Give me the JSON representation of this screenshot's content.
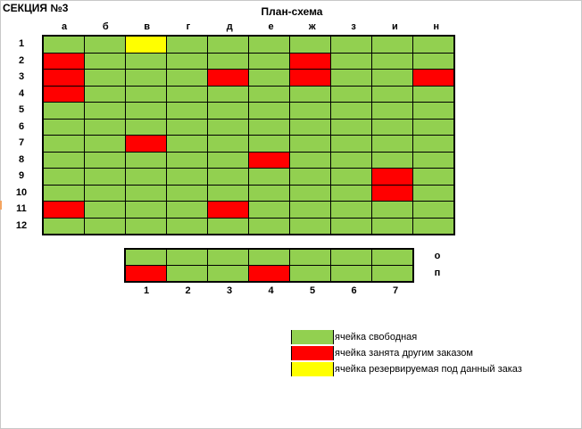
{
  "section_title": "СЕКЦИЯ №3",
  "plan_title": "План-схема",
  "main_grid": {
    "columns": [
      "а",
      "б",
      "в",
      "г",
      "д",
      "е",
      "ж",
      "з",
      "и",
      "н"
    ],
    "rows": [
      {
        "label": "1",
        "cells": [
          "f",
          "f",
          "r",
          "f",
          "f",
          "f",
          "f",
          "f",
          "f",
          "f"
        ]
      },
      {
        "label": "2",
        "cells": [
          "t",
          "f",
          "f",
          "f",
          "f",
          "f",
          "t",
          "f",
          "f",
          "f"
        ]
      },
      {
        "label": "3",
        "cells": [
          "t",
          "f",
          "f",
          "f",
          "t",
          "f",
          "t",
          "f",
          "f",
          "t"
        ]
      },
      {
        "label": "4",
        "cells": [
          "t",
          "f",
          "f",
          "f",
          "f",
          "f",
          "f",
          "f",
          "f",
          "f"
        ]
      },
      {
        "label": "5",
        "cells": [
          "f",
          "f",
          "f",
          "f",
          "f",
          "f",
          "f",
          "f",
          "f",
          "f"
        ]
      },
      {
        "label": "6",
        "cells": [
          "f",
          "f",
          "f",
          "f",
          "f",
          "f",
          "f",
          "f",
          "f",
          "f"
        ]
      },
      {
        "label": "7",
        "cells": [
          "f",
          "f",
          "t",
          "f",
          "f",
          "f",
          "f",
          "f",
          "f",
          "f"
        ]
      },
      {
        "label": "8",
        "cells": [
          "f",
          "f",
          "f",
          "f",
          "f",
          "t",
          "f",
          "f",
          "f",
          "f"
        ]
      },
      {
        "label": "9",
        "cells": [
          "f",
          "f",
          "f",
          "f",
          "f",
          "f",
          "f",
          "f",
          "t",
          "f"
        ]
      },
      {
        "label": "10",
        "cells": [
          "f",
          "f",
          "f",
          "f",
          "f",
          "f",
          "f",
          "f",
          "t",
          "f"
        ]
      },
      {
        "label": "11",
        "cells": [
          "t",
          "f",
          "f",
          "f",
          "t",
          "f",
          "f",
          "f",
          "f",
          "f"
        ]
      },
      {
        "label": "12",
        "cells": [
          "f",
          "f",
          "f",
          "f",
          "f",
          "f",
          "f",
          "f",
          "f",
          "f"
        ]
      }
    ]
  },
  "bottom_grid": {
    "columns": [
      "1",
      "2",
      "3",
      "4",
      "5",
      "6",
      "7"
    ],
    "rows": [
      {
        "label": "о",
        "cells": [
          "f",
          "f",
          "f",
          "f",
          "f",
          "f",
          "f"
        ]
      },
      {
        "label": "п",
        "cells": [
          "t",
          "f",
          "f",
          "t",
          "f",
          "f",
          "f"
        ]
      }
    ]
  },
  "legend": [
    {
      "status": "f",
      "text": "ячейка свободная"
    },
    {
      "status": "t",
      "text": "ячейка занята другим заказом"
    },
    {
      "status": "r",
      "text": "ячейка резервируемая под данный заказ"
    }
  ],
  "colors": {
    "free": "#92d050",
    "taken": "#ff0000",
    "reserved": "#ffff00"
  }
}
